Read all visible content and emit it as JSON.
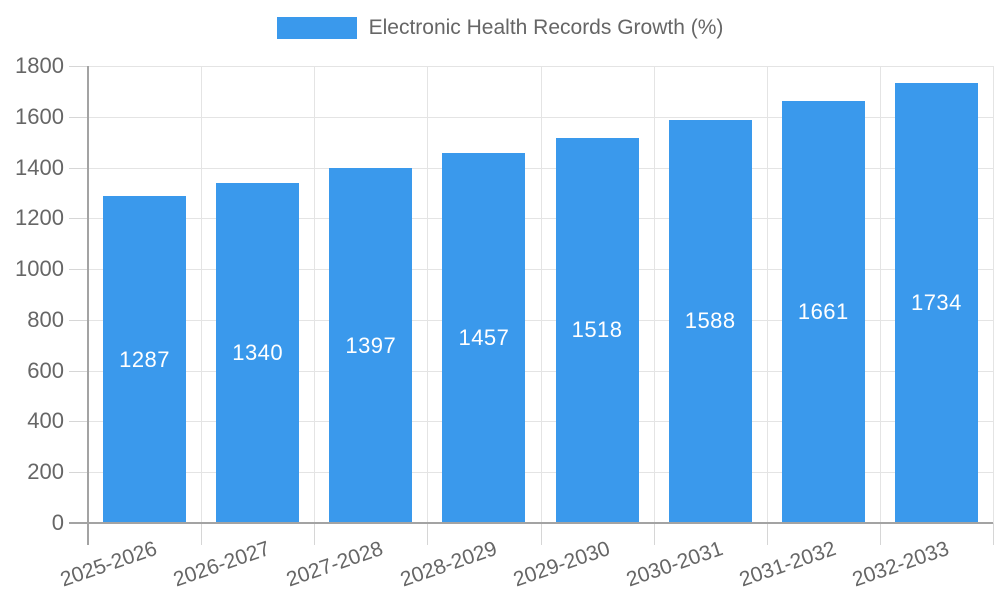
{
  "chart_data": {
    "type": "bar",
    "legend": "Electronic Health Records Growth (%)",
    "legend_position": "top",
    "categories": [
      "2025-2026",
      "2026-2027",
      "2027-2028",
      "2028-2029",
      "2029-2030",
      "2030-2031",
      "2031-2032",
      "2032-2033"
    ],
    "values": [
      1287,
      1340,
      1397,
      1457,
      1518,
      1588,
      1661,
      1734
    ],
    "value_labels": [
      "1287",
      "1340",
      "1397",
      "1457",
      "1518",
      "1588",
      "1661",
      "1734"
    ],
    "title": "",
    "xlabel": "",
    "ylabel": "",
    "ylim": [
      0,
      1800
    ],
    "yticks": [
      0,
      200,
      400,
      600,
      800,
      1000,
      1200,
      1400,
      1600,
      1800
    ],
    "grid": true,
    "colors": {
      "bar": "#3A99EC",
      "value_label": "#FFFFFF",
      "tick_text": "#666666",
      "legend_text": "#666666",
      "grid_line": "#E4E4E4",
      "tick_mark": "#D6D6D6",
      "axis_line": "#A3A3A3"
    }
  }
}
